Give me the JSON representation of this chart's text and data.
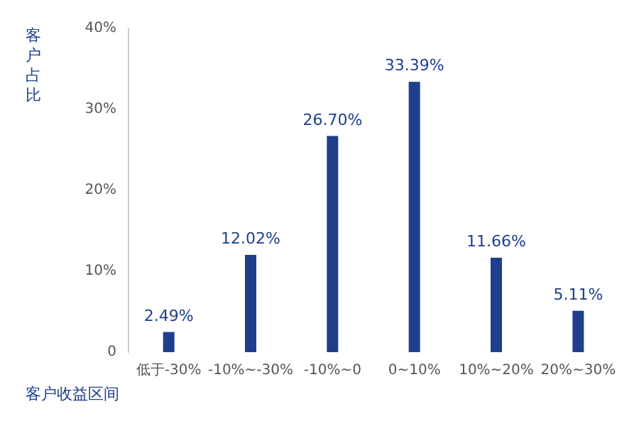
{
  "chart_data": {
    "type": "bar",
    "xlabel": "客户收益区间",
    "ylabel": "客户占比",
    "categories": [
      "低于-30%",
      "-10%~-30%",
      "-10%~0",
      "0~10%",
      "10%~20%",
      "20%~30%"
    ],
    "values": [
      2.49,
      12.02,
      26.7,
      33.39,
      11.66,
      5.11
    ],
    "value_labels": [
      "2.49%",
      "12.02%",
      "26.70%",
      "33.39%",
      "11.66%",
      "5.11%"
    ],
    "color": "#1d3f8c",
    "ylim": [
      0,
      40
    ],
    "yticks": [
      0,
      {
        "value": 10,
        "label": "10%"
      },
      {
        "value": 20,
        "label": "20%"
      },
      {
        "value": 30,
        "label": "30%"
      },
      {
        "value": 40,
        "label": "40%"
      }
    ],
    "grid": false
  }
}
